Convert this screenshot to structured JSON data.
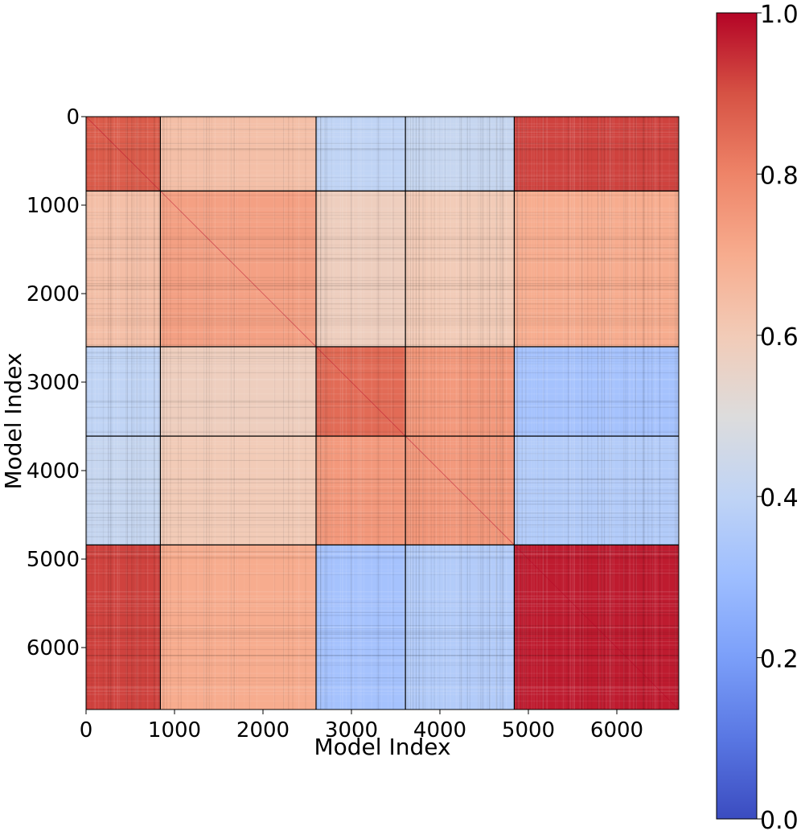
{
  "chart_data": {
    "type": "heatmap",
    "title": "",
    "xlabel": "Model Index",
    "ylabel": "Model Index",
    "xlim": [
      0,
      6700
    ],
    "ylim": [
      6700,
      0
    ],
    "x_ticks": [
      0,
      1000,
      2000,
      3000,
      4000,
      5000,
      6000
    ],
    "y_ticks": [
      0,
      1000,
      2000,
      3000,
      4000,
      5000,
      6000
    ],
    "block_boundaries": [
      0,
      840,
      2600,
      3610,
      4840,
      6700
    ],
    "block_similarity": [
      [
        0.88,
        0.64,
        0.4,
        0.42,
        0.92
      ],
      [
        0.64,
        0.73,
        0.58,
        0.6,
        0.7
      ],
      [
        0.4,
        0.58,
        0.85,
        0.75,
        0.32
      ],
      [
        0.42,
        0.6,
        0.75,
        0.75,
        0.36
      ],
      [
        0.92,
        0.7,
        0.32,
        0.36,
        0.97
      ]
    ],
    "diagonal_similarity": 1.0,
    "colormap": "coolwarm",
    "colorbar": {
      "min": 0.0,
      "max": 1.0,
      "ticks": [
        "0.0",
        "0.2",
        "0.4",
        "0.6",
        "0.8",
        "1.0"
      ],
      "colors": [
        "#3b4cc0",
        "#5977e3",
        "#7b9ff9",
        "#9ebeff",
        "#c0d4f5",
        "#dddcdc",
        "#f2cbb7",
        "#f7ac8e",
        "#ee8468",
        "#d65244",
        "#b40426"
      ]
    },
    "grid": false
  }
}
